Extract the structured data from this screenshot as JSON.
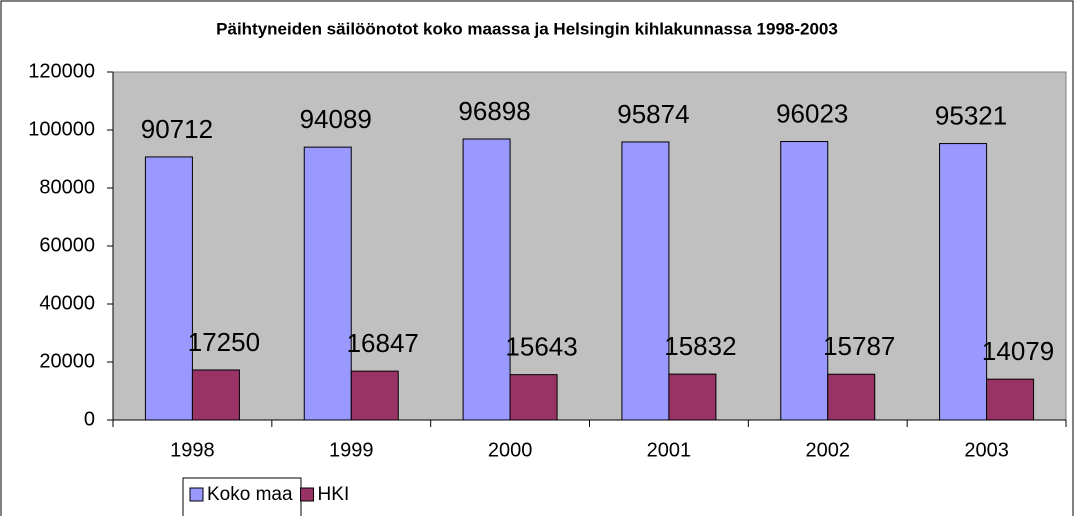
{
  "chart_data": {
    "type": "bar",
    "title": "Päihtyneiden säilöönotot koko maassa ja Helsingin kihlakunnassa 1998-2003",
    "categories": [
      "1998",
      "1999",
      "2000",
      "2001",
      "2002",
      "2003"
    ],
    "series": [
      {
        "name": "Koko maa",
        "color": "#9999ff",
        "values": [
          90712,
          94089,
          96898,
          95874,
          96023,
          95321
        ]
      },
      {
        "name": "HKI",
        "color": "#993366",
        "values": [
          17250,
          16847,
          15643,
          15832,
          15787,
          14079
        ]
      }
    ],
    "ylim": [
      0,
      120000
    ],
    "yticks": [
      0,
      20000,
      40000,
      60000,
      80000,
      100000,
      120000
    ],
    "legend": "bottom",
    "plot_background": "#c0c0c0"
  }
}
